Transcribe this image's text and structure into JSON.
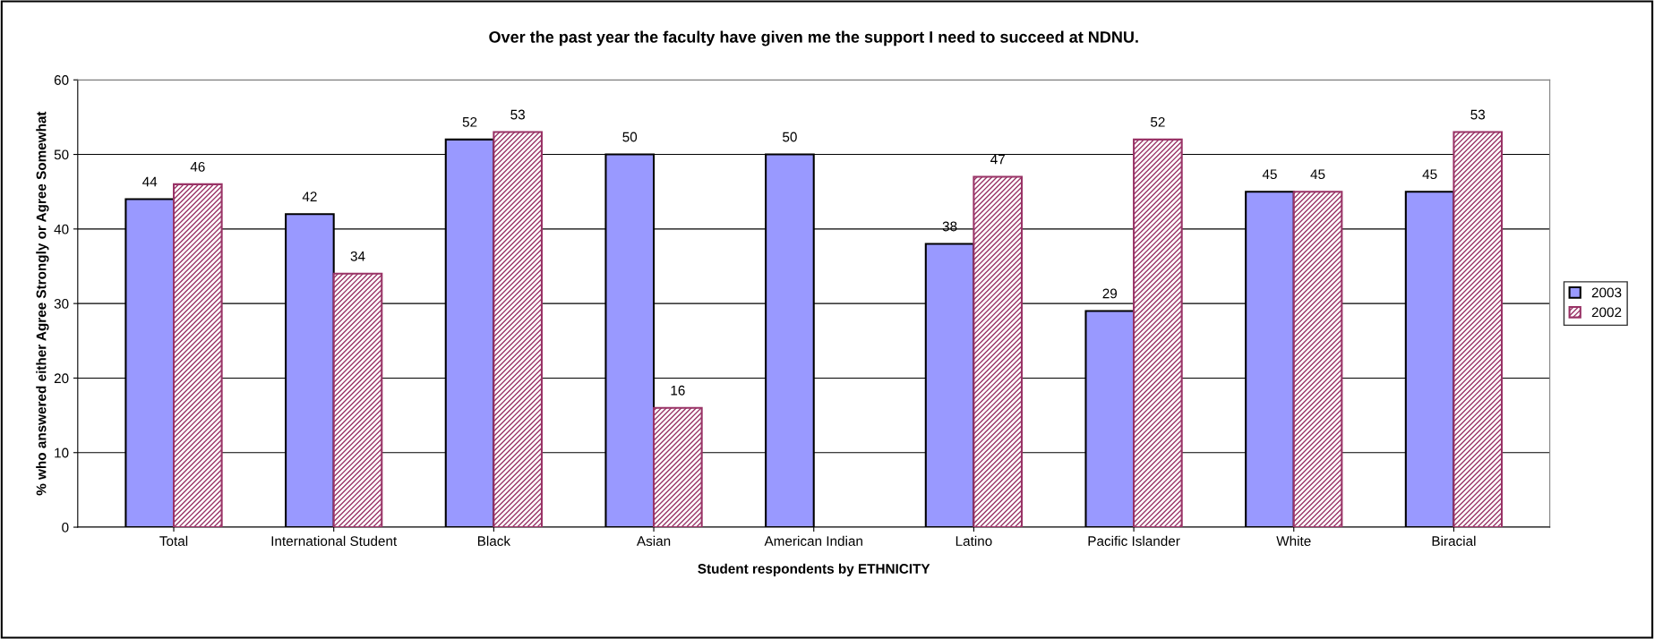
{
  "chart_data": {
    "type": "bar",
    "title": "Over the past year the faculty have given me the support I need to succeed at NDNU.",
    "xlabel": "Student respondents by ETHNICITY",
    "ylabel": "% who answered either Agree Strongly or Agree Somewhat",
    "categories": [
      "Total",
      "International Student",
      "Black",
      "Asian",
      "American Indian",
      "Latino",
      "Pacific Islander",
      "White",
      "Biracial"
    ],
    "series": [
      {
        "name": "2003",
        "color": "#9999ff",
        "values": [
          44,
          42,
          52,
          50,
          50,
          38,
          29,
          45,
          45
        ]
      },
      {
        "name": "2002",
        "color": "#993366",
        "values": [
          46,
          34,
          53,
          16,
          null,
          47,
          52,
          45,
          53
        ]
      }
    ],
    "ylim": [
      0,
      60
    ],
    "yticks": [
      0,
      10,
      20,
      30,
      40,
      50,
      60
    ],
    "grid": "y",
    "legend": "right",
    "data_labels": true
  }
}
